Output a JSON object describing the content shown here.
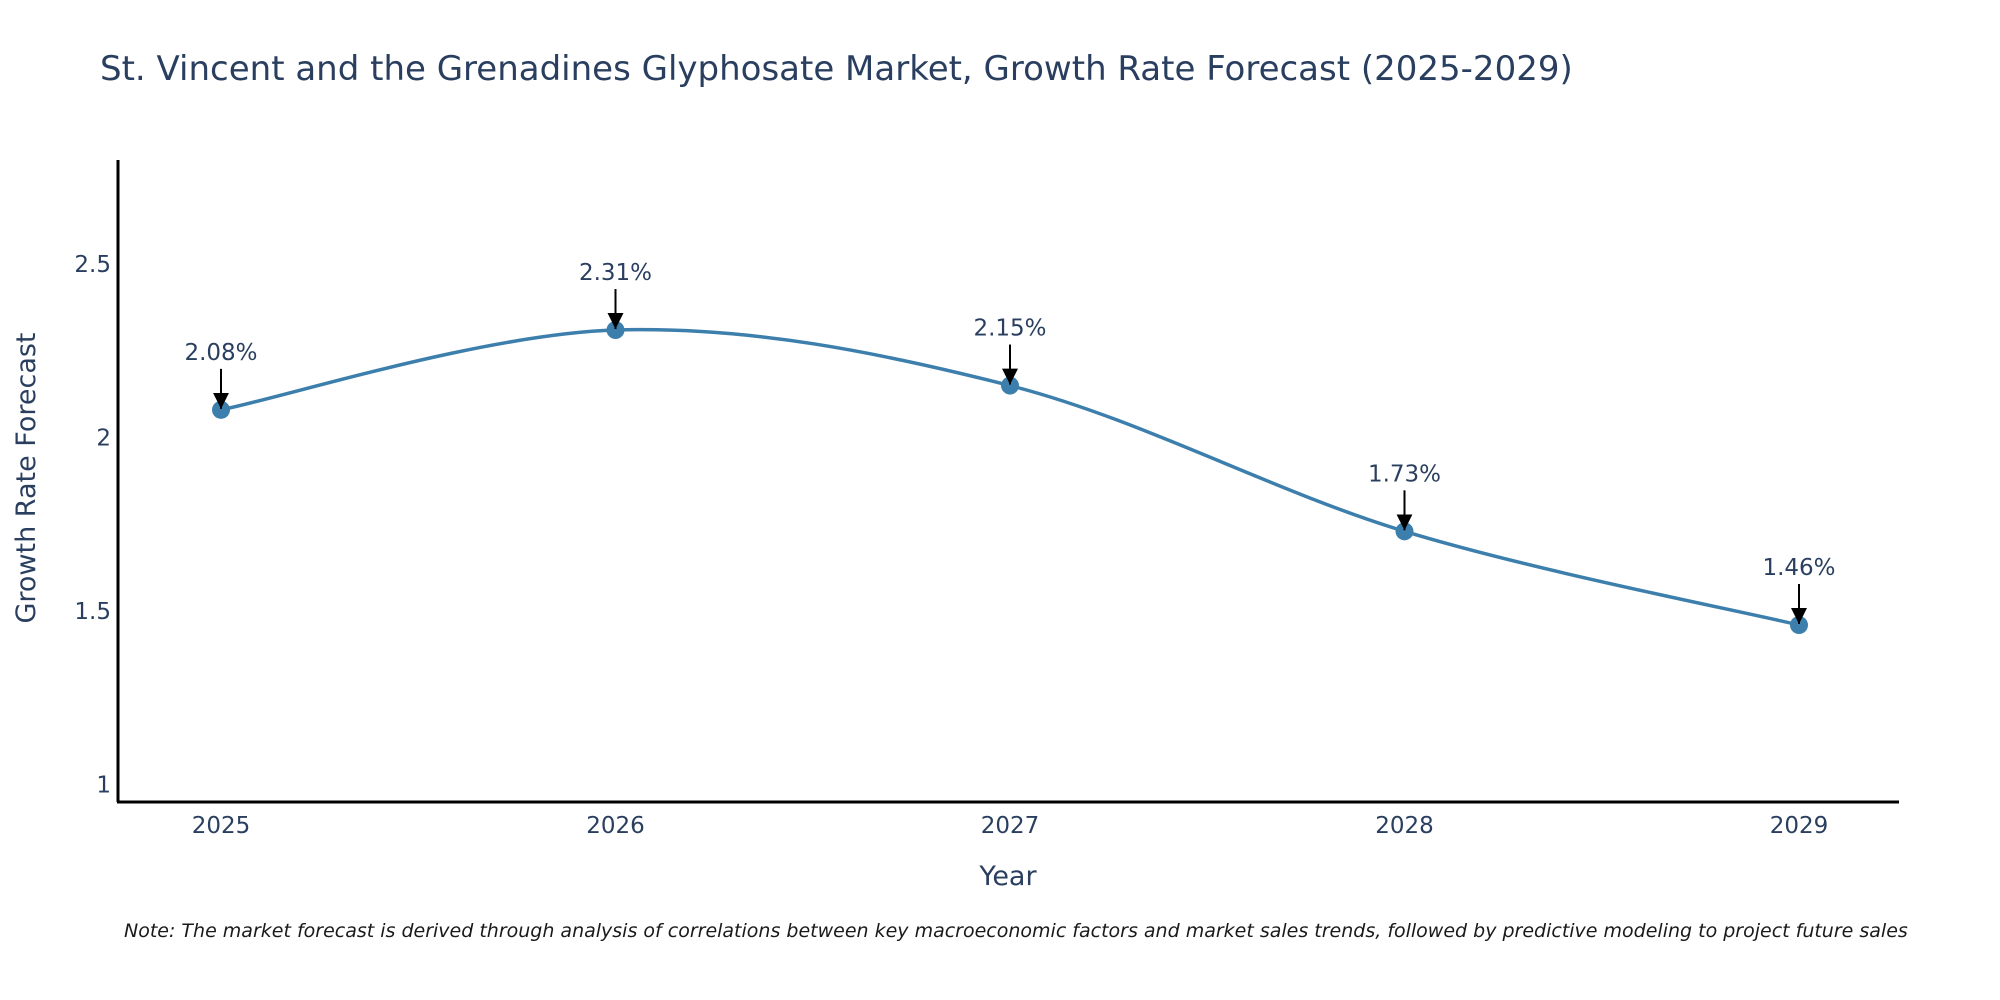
{
  "chart_data": {
    "type": "line",
    "title": "St. Vincent and the Grenadines Glyphosate Market, Growth Rate Forecast (2025-2029)",
    "xlabel": "Year",
    "ylabel": "Growth Rate Forecast",
    "categories": [
      "2025",
      "2026",
      "2027",
      "2028",
      "2029"
    ],
    "series": [
      {
        "name": "Growth Rate Forecast",
        "values": [
          2.08,
          2.31,
          2.15,
          1.73,
          1.46
        ],
        "labels": [
          "2.08%",
          "2.31%",
          "2.15%",
          "1.73%",
          "1.46%"
        ],
        "color": "#3d7fac"
      }
    ],
    "ylim": [
      0.95,
      2.8
    ],
    "yticks": [
      1,
      1.5,
      2,
      2.5
    ],
    "ytick_labels": [
      "1",
      "1.5",
      "2",
      "2.5"
    ],
    "grid": false,
    "line_shape": "spline"
  },
  "note": "Note: The market forecast is derived through analysis of correlations between key macroeconomic factors and market sales trends, followed by predictive modeling to project future sales"
}
